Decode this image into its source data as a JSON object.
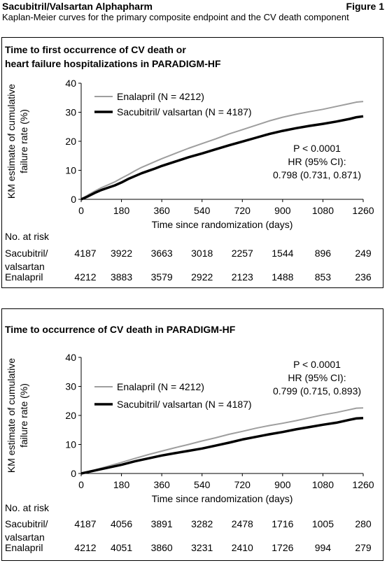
{
  "header": {
    "title": "Sacubitril/Valsartan Alphapharm",
    "figure_label": "Figure 1",
    "subtitle": "Kaplan-Meier curves for the primary composite endpoint and the CV death component"
  },
  "colors": {
    "enalapril": "#9e9e9e",
    "sacubitril": "#000000"
  },
  "chart_data": [
    {
      "type": "line",
      "title_lines": [
        "Time to first occurrence of CV death or",
        "heart failure hospitalizations in PARADIGM-HF"
      ],
      "xlabel": "Time since randomization (days)",
      "ylabel_lines": [
        "KM estimate of cumulative",
        "failure rate (%)"
      ],
      "xlim": [
        0,
        1260
      ],
      "ylim": [
        0,
        40
      ],
      "xticks": [
        0,
        180,
        360,
        540,
        720,
        900,
        1080,
        1260
      ],
      "yticks": [
        0,
        10,
        20,
        30,
        40
      ],
      "grid": false,
      "legend_position": "top-left",
      "stats": [
        "P < 0.0001",
        "HR (95% CI):",
        "0.798 (0.731, 0.871)"
      ],
      "series": [
        {
          "name": "Enalapril (N = 4212)",
          "x": [
            0,
            30,
            60,
            90,
            120,
            150,
            180,
            210,
            240,
            270,
            300,
            330,
            360,
            420,
            480,
            540,
            600,
            660,
            720,
            780,
            840,
            900,
            960,
            1020,
            1080,
            1140,
            1200,
            1230,
            1260
          ],
          "y": [
            0,
            1.5,
            2.8,
            4.0,
            5.0,
            6.0,
            7.3,
            8.5,
            9.8,
            11.0,
            12.0,
            13.0,
            14.0,
            15.8,
            17.6,
            19.2,
            20.8,
            22.5,
            24.0,
            25.5,
            27.0,
            28.3,
            29.3,
            30.2,
            31.0,
            32.0,
            33.0,
            33.5,
            33.7
          ]
        },
        {
          "name": "Sacubitril/ valsartan (N = 4187)",
          "x": [
            0,
            30,
            60,
            90,
            120,
            150,
            180,
            210,
            240,
            270,
            300,
            330,
            360,
            420,
            480,
            540,
            600,
            660,
            720,
            780,
            840,
            900,
            960,
            1020,
            1080,
            1140,
            1200,
            1230,
            1260
          ],
          "y": [
            0,
            1.0,
            2.2,
            3.2,
            4.0,
            4.8,
            5.8,
            7.0,
            8.0,
            9.0,
            9.8,
            10.6,
            11.5,
            13.0,
            14.5,
            15.8,
            17.2,
            18.6,
            19.9,
            21.2,
            22.5,
            23.6,
            24.5,
            25.3,
            26.0,
            26.8,
            27.7,
            28.3,
            28.6
          ]
        }
      ],
      "risk_table": {
        "header": "No. at risk",
        "rows": [
          {
            "label_lines": [
              "Sacubitril/",
              "valsartan"
            ],
            "values": [
              "4187",
              "3922",
              "3663",
              "3018",
              "2257",
              "1544",
              "896",
              "249"
            ]
          },
          {
            "label_lines": [
              "Enalapril"
            ],
            "values": [
              "4212",
              "3883",
              "3579",
              "2922",
              "2123",
              "1488",
              "853",
              "236"
            ]
          }
        ]
      }
    },
    {
      "type": "line",
      "title_lines": [
        "Time to occurrence of CV death in PARADIGM-HF"
      ],
      "xlabel": "Time since randomization (days)",
      "ylabel_lines": [
        "KM estimate of cumulative",
        "failure rate (%)"
      ],
      "xlim": [
        0,
        1260
      ],
      "ylim": [
        0,
        40
      ],
      "xticks": [
        0,
        180,
        360,
        540,
        720,
        900,
        1080,
        1260
      ],
      "yticks": [
        0,
        10,
        20,
        30,
        40
      ],
      "grid": false,
      "legend_position": "middle-left",
      "stats": [
        "P < 0.0001",
        "HR (95% CI):",
        "0.799 (0.715, 0.893)"
      ],
      "series": [
        {
          "name": "Enalapril (N = 4212)",
          "x": [
            0,
            60,
            120,
            180,
            240,
            300,
            360,
            420,
            480,
            540,
            600,
            660,
            720,
            780,
            840,
            900,
            960,
            1020,
            1080,
            1140,
            1200,
            1230,
            1260
          ],
          "y": [
            0,
            1.2,
            2.5,
            3.8,
            5.2,
            6.5,
            7.7,
            8.9,
            10.0,
            11.2,
            12.3,
            13.5,
            14.5,
            15.6,
            16.5,
            17.3,
            18.2,
            19.2,
            20.2,
            21.0,
            22.0,
            22.5,
            22.6
          ]
        },
        {
          "name": "Sacubitril/ valsartan (N = 4187)",
          "x": [
            0,
            60,
            120,
            180,
            240,
            300,
            360,
            420,
            480,
            540,
            600,
            660,
            720,
            780,
            840,
            900,
            960,
            1020,
            1080,
            1140,
            1200,
            1230,
            1260
          ],
          "y": [
            0,
            1.0,
            2.0,
            3.0,
            4.2,
            5.2,
            6.2,
            7.0,
            7.8,
            8.6,
            9.6,
            10.6,
            11.7,
            12.6,
            13.5,
            14.3,
            15.2,
            16.0,
            16.8,
            17.5,
            18.5,
            19.0,
            19.1
          ]
        }
      ],
      "risk_table": {
        "header": "No. at risk",
        "rows": [
          {
            "label_lines": [
              "Sacubitril/",
              "valsartan"
            ],
            "values": [
              "4187",
              "4056",
              "3891",
              "3282",
              "2478",
              "1716",
              "1005",
              "280"
            ]
          },
          {
            "label_lines": [
              "Enalapril"
            ],
            "values": [
              "4212",
              "4051",
              "3860",
              "3231",
              "2410",
              "1726",
              "994",
              "279"
            ]
          }
        ]
      }
    }
  ]
}
